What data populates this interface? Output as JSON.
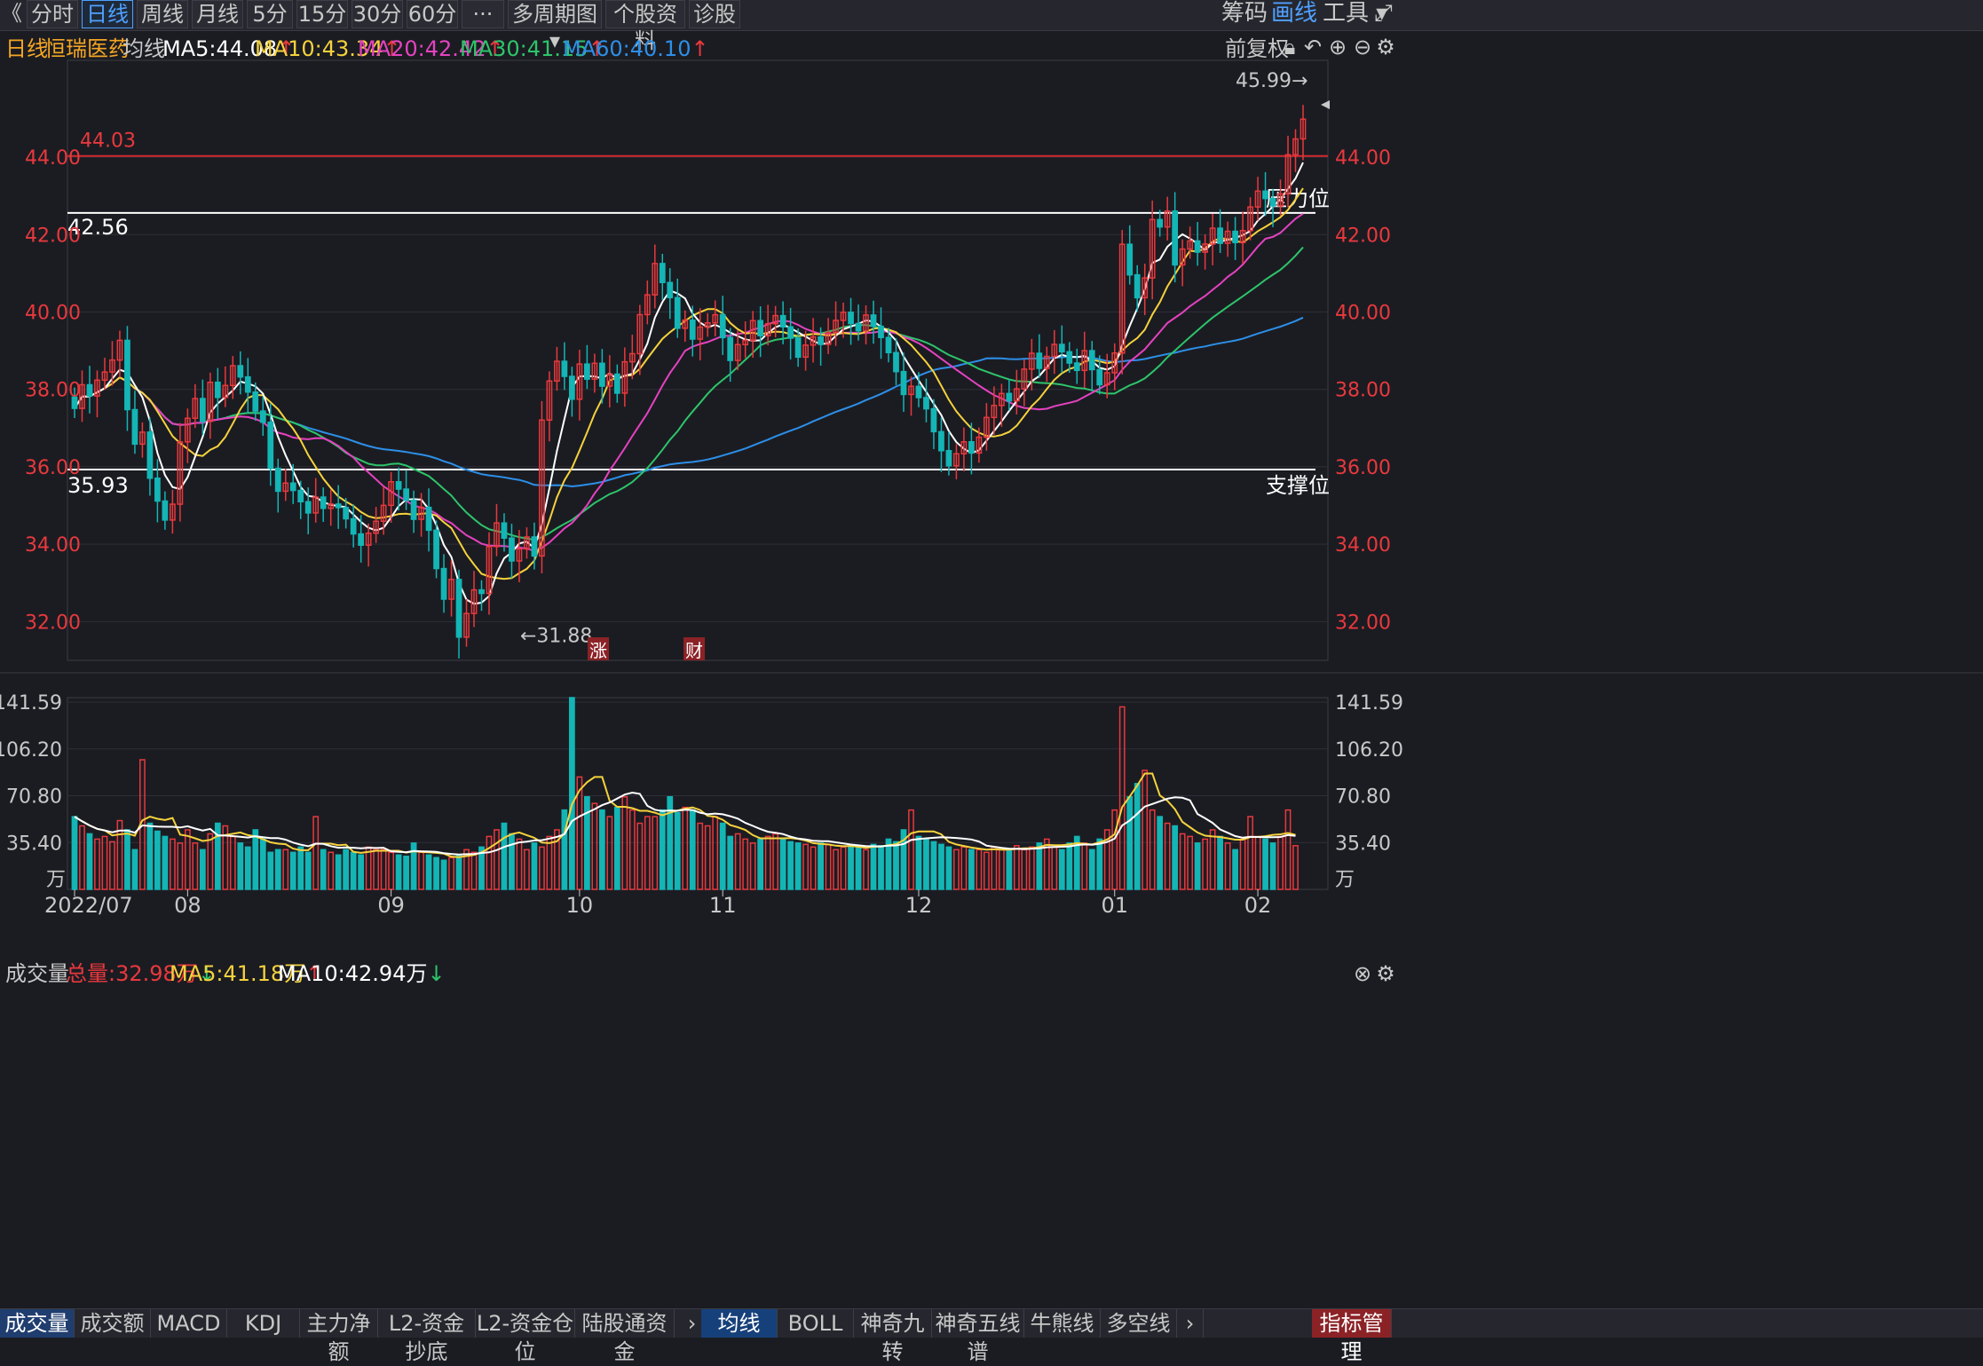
{
  "toolbar": {
    "back": "《",
    "tabs": [
      "分时",
      "日线",
      "周线",
      "月线",
      "5分",
      "15分",
      "30分",
      "60分",
      "···",
      "多周期图 ▾",
      "个股资料",
      "诊股"
    ],
    "active_tab": 1,
    "right": [
      "筹码",
      "画线",
      "工具 ▾"
    ]
  },
  "info": {
    "period": "日线",
    "stock": "恒瑞医药",
    "ma_label": "均线",
    "ma5": "MA5:44.08",
    "ma10": "MA10:43.34",
    "ma20": "MA20:42.42",
    "ma30": "MA30:41.15",
    "ma60": "MA60:40.10",
    "fuquan": "前复权"
  },
  "volume_info": {
    "label": "成交量",
    "total": "总量:32.98万",
    "ma5": "MA5:41.18万",
    "ma10": "MA10:42.94万"
  },
  "colors": {
    "up": "#e8393d",
    "down": "#14b5b5",
    "ma5": "#ffffff",
    "ma10": "#f5d23c",
    "ma20": "#e542c0",
    "ma30": "#2ec46a",
    "ma60": "#2d8fe8"
  },
  "annotations": {
    "resistance_value": "42.56",
    "resistance_label": "压力位",
    "support_value": "35.93",
    "support_label": "支撑位",
    "red_line_value": "44.03",
    "high_label": "45.99→",
    "low_label": "←31.88",
    "marker_zhang": "涨",
    "marker_cai": "财"
  },
  "chart_data": {
    "type": "candlestick",
    "price_ticks": [
      "44.00",
      "42.00",
      "40.00",
      "38.00",
      "36.00",
      "34.00",
      "32.00"
    ],
    "price_range": [
      31.0,
      46.5
    ],
    "volume_ticks": [
      "141.59",
      "106.20",
      "70.80",
      "35.40"
    ],
    "volume_unit": "万",
    "volume_range": [
      0,
      145
    ],
    "x_labels": [
      "2022/07",
      "08",
      "09",
      "10",
      "11",
      "12",
      "01",
      "02"
    ],
    "x_label_index": [
      0,
      15,
      42,
      67,
      86,
      112,
      138,
      157
    ],
    "start_price": 37.8,
    "pattern": [
      -0.3,
      0.6,
      -0.3,
      0.4,
      0.2,
      0.3,
      0.5,
      -1.8,
      -0.9,
      0.3,
      -1.2,
      -0.6,
      -0.5,
      0.4,
      1.6,
      0.6,
      0.5,
      -0.6,
      1.0,
      -0.4,
      0.3,
      0.5,
      -0.3,
      -0.4,
      -0.5,
      -0.3,
      -1.2,
      -0.6,
      0.2,
      -0.2,
      -0.3,
      -0.3,
      0.4,
      -0.3,
      0.1,
      -0.1,
      -0.3,
      -0.4,
      -0.3,
      0.3,
      0.3,
      0.4,
      0.6,
      -0.2,
      -0.3,
      -0.5,
      0.3,
      -0.6,
      -1.0,
      -0.8,
      0.5,
      -1.5,
      0.6,
      0.6,
      -0.1,
      1.2,
      0.6,
      -0.4,
      -0.6,
      0.3,
      0.3,
      -0.5,
      3.5,
      1.0,
      0.5,
      -0.4,
      -0.6,
      0.9,
      -0.4,
      0.4,
      -0.6,
      0.3,
      -0.5,
      0.8,
      0.2,
      1.0,
      0.5,
      0.8,
      -0.5,
      -0.4,
      -0.8,
      0.2,
      -0.5,
      0.3,
      0.1,
      0.2,
      -0.6,
      -0.6,
      0.4,
      0.1,
      0.5,
      -0.4,
      0.3,
      0.2,
      -0.3,
      -0.3,
      -0.5,
      0.3,
      0.2,
      -0.2,
      0.3,
      0.3,
      0.2,
      -0.3,
      -0.2,
      0.4,
      -0.3,
      -0.3,
      -0.4,
      -0.5,
      -0.6,
      0.2,
      -0.3,
      -0.3,
      -0.6,
      -0.5,
      -0.4,
      0.3,
      0.3,
      -0.3,
      0.4,
      0.5,
      0.3,
      0.3,
      -0.2,
      0.3,
      0.5,
      0.4,
      -0.4,
      0.3,
      0.3,
      -0.2,
      -0.3,
      -0.2,
      0.5,
      -0.5,
      -0.4,
      0.3,
      0.5,
      2.8,
      -0.8,
      -0.6,
      0.5,
      1.5,
      -0.2,
      0.4,
      -1.4,
      0.4,
      0.2,
      -0.3,
      0.2,
      0.4,
      -0.4,
      0.3,
      -0.3,
      0.3,
      0.6,
      0.4,
      -0.2,
      -0.2,
      0.3,
      1.0,
      0.4,
      0.5
    ],
    "volume_pattern": [
      55,
      48,
      42,
      38,
      40,
      36,
      52,
      45,
      30,
      98,
      50,
      44,
      40,
      38,
      35,
      45,
      35,
      30,
      42,
      50,
      48,
      40,
      35,
      32,
      45,
      38,
      28,
      30,
      30,
      28,
      32,
      28,
      55,
      30,
      28,
      26,
      30,
      28,
      26,
      32,
      30,
      30,
      28,
      26,
      25,
      35,
      28,
      26,
      24,
      22,
      24,
      26,
      30,
      28,
      32,
      40,
      45,
      50,
      42,
      38,
      30,
      35,
      32,
      40,
      45,
      60,
      145,
      85,
      70,
      65,
      60,
      55,
      62,
      70,
      60,
      50,
      55,
      55,
      60,
      70,
      58,
      62,
      60,
      50,
      48,
      55,
      50,
      40,
      42,
      38,
      35,
      38,
      40,
      42,
      38,
      36,
      35,
      34,
      32,
      35,
      34,
      30,
      32,
      33,
      32,
      30,
      34,
      33,
      38,
      36,
      45,
      60,
      40,
      38,
      36,
      34,
      32,
      30,
      32,
      30,
      30,
      28,
      32,
      30,
      30,
      33,
      30,
      32,
      35,
      38,
      32,
      30,
      35,
      40,
      35,
      30,
      38,
      45,
      60,
      138,
      70,
      80,
      90,
      60,
      55,
      50,
      48,
      42,
      40,
      35,
      38,
      45,
      40,
      35,
      30,
      38,
      55,
      40,
      38,
      35,
      40,
      60,
      33
    ],
    "ma_values": {
      "ma5": 44.08,
      "ma10": 43.34,
      "ma20": 42.42,
      "ma30": 41.15,
      "ma60": 40.1
    },
    "levels": {
      "resistance": 42.56,
      "support": 35.93,
      "red_line": 44.03,
      "high": 45.99,
      "low": 31.88
    }
  },
  "bottom_tabs": {
    "left": [
      "成交量",
      "成交额",
      "MACD",
      "KDJ",
      "主力净额",
      "L2-资金抄底",
      "L2-资金仓位",
      "陆股通资金"
    ],
    "right": [
      "均线",
      "BOLL",
      "神奇九转",
      "神奇五线谱",
      "牛熊线",
      "多空线"
    ],
    "more": "›",
    "manage": "指标管理"
  }
}
